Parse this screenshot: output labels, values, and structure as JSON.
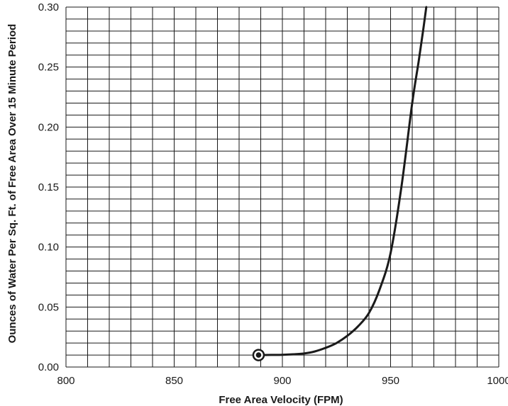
{
  "chart_data": {
    "type": "line",
    "title": "",
    "xlabel": "Free Area Velocity (FPM)",
    "ylabel": "Ounces of Water Per Sq. Ft. of Free Area Over 15 Minute Period",
    "xlim": [
      800,
      1000
    ],
    "ylim": [
      0,
      0.3
    ],
    "x_ticks": [
      800,
      850,
      900,
      950,
      1000
    ],
    "x_tick_labels": [
      "800",
      "850",
      "900",
      "950",
      "1000"
    ],
    "y_ticks": [
      0,
      0.05,
      0.1,
      0.15,
      0.2,
      0.25,
      0.3
    ],
    "y_tick_labels": [
      "0.00",
      "0.05",
      "0.10",
      "0.15",
      "0.20",
      "0.25",
      "0.30"
    ],
    "grid": true,
    "grid_x_step": 10,
    "grid_y_step": 0.01,
    "line_color": "#1a1a1a",
    "grid_color": "#1a1a1a",
    "start_marker": {
      "x": 889,
      "y": 0.01,
      "style": "circled-dot"
    },
    "series": [
      {
        "x": [
          889,
          895,
          900,
          905,
          910,
          915,
          920,
          925,
          930,
          935,
          940,
          945,
          950,
          955,
          960,
          963,
          965,
          966.5
        ],
        "y": [
          0.01,
          0.0101,
          0.0102,
          0.0106,
          0.0113,
          0.013,
          0.016,
          0.02,
          0.026,
          0.034,
          0.045,
          0.065,
          0.095,
          0.15,
          0.22,
          0.255,
          0.28,
          0.3
        ]
      }
    ]
  }
}
